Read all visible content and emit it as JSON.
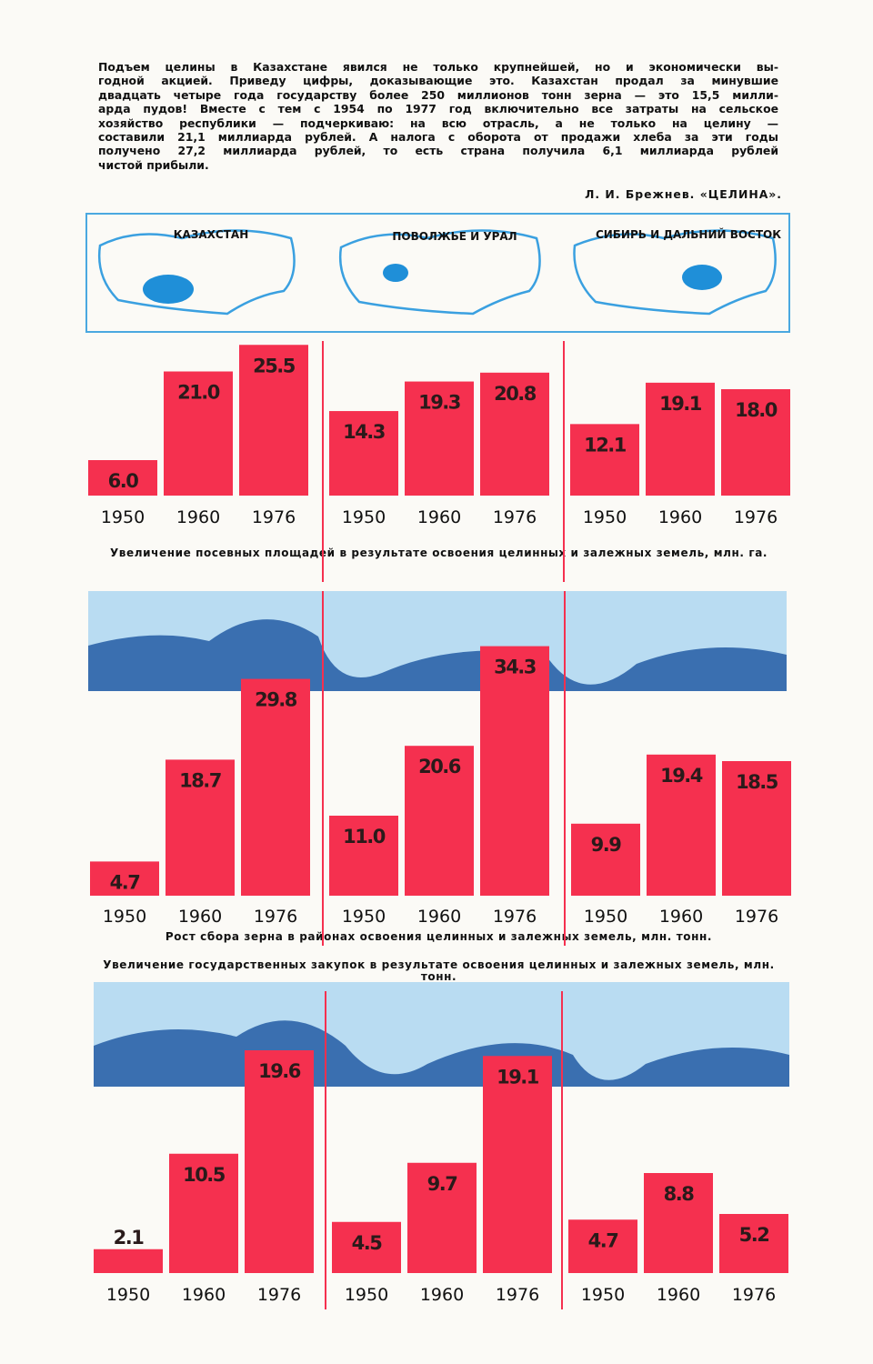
{
  "quote": {
    "lines": [
      "Подъем целины в Казахстане явился не только крупнейшей, но и экономически вы-",
      "годной акцией. Приведу цифры, доказывающие это. Казахстан продал за минувшие",
      "двадцать четыре года государству более 250 миллионов тонн зерна — это 15,5 милли-",
      "арда пудов! Вместе с тем с 1954 по 1977 год включительно все затраты на сельское",
      "хозяйство республики — подчеркиваю: на всю отрасль, а не только на целину —",
      "составили 21,1 миллиарда рублей. А налога с оборота от продажи хлеба за эти годы",
      "получено 27,2 миллиарда рублей, то есть страна получила 6,1 миллиарда рублей",
      "чистой прибыли."
    ],
    "attribution": "Л. И. Брежнев. «ЦЕЛИНА»."
  },
  "map_labels": [
    "КАЗАХСТАН",
    "ПОВОЛЖЬЕ И УРАЛ",
    "СИБИРЬ И ДАЛЬНИЙ ВОСТОК"
  ],
  "chart_data": [
    {
      "type": "bar",
      "title": "Увеличение посевных площадей в результате освоения целинных и залежных земель, млн. га.",
      "categories": [
        "1950",
        "1960",
        "1976"
      ],
      "color": "#f5304f",
      "panels": [
        {
          "values": [
            6.0,
            21.0,
            25.5
          ],
          "value_labels": [
            "6.0",
            "21.0",
            "25.5"
          ]
        },
        {
          "values": [
            14.3,
            19.3,
            20.8
          ],
          "value_labels": [
            "14.3",
            "19.3",
            "20.8"
          ]
        },
        {
          "values": [
            12.1,
            19.1,
            18.0
          ],
          "value_labels": [
            "12.1",
            "19.1",
            "18.0"
          ]
        }
      ]
    },
    {
      "type": "bar",
      "title": "Рост сбора зерна в районах освоения целинных и залежных земель, млн. тонн.",
      "categories": [
        "1950",
        "1960",
        "1976"
      ],
      "color": "#f5304f",
      "panels": [
        {
          "values": [
            4.7,
            18.7,
            29.8
          ],
          "value_labels": [
            "4.7",
            "18.7",
            "29.8"
          ]
        },
        {
          "values": [
            11.0,
            20.6,
            34.3
          ],
          "value_labels": [
            "11.0",
            "20.6",
            "34.3"
          ]
        },
        {
          "values": [
            9.9,
            19.4,
            18.5
          ],
          "value_labels": [
            "9.9",
            "19.4",
            "18.5"
          ]
        }
      ]
    },
    {
      "type": "bar",
      "title": "Увеличение государственных закупок в результате освоения целинных и залежных земель, млн. тонн.",
      "categories": [
        "1950",
        "1960",
        "1976"
      ],
      "color": "#f5304f",
      "panels": [
        {
          "values": [
            2.1,
            10.5,
            19.6
          ],
          "value_labels": [
            "2.1",
            "10.5",
            "19.6"
          ]
        },
        {
          "values": [
            4.5,
            9.7,
            19.1
          ],
          "value_labels": [
            "4.5",
            "9.7",
            "19.1"
          ]
        },
        {
          "values": [
            4.7,
            8.8,
            5.2
          ],
          "value_labels": [
            "4.7",
            "8.8",
            "5.2"
          ]
        }
      ]
    }
  ]
}
